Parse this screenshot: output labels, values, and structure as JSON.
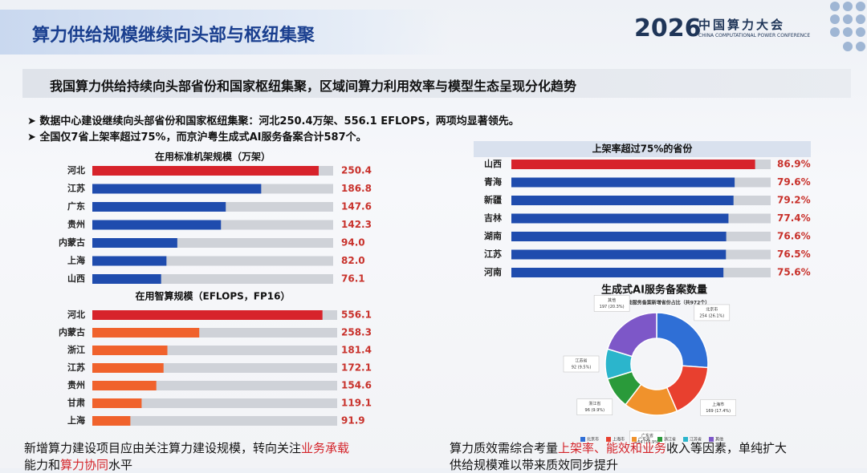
{
  "header": {
    "title": "算力供给规模继续向头部与枢纽集聚",
    "logo_year": "2026",
    "logo_name": "中国算力大会",
    "logo_english": "CHINA COMPUTATIONAL POWER CONFERENCE"
  },
  "summary": {
    "text": "我国算力供给持续向头部省份和国家枢纽集聚，区域间算力利用效率与模型生态呈现",
    "highlight": "分化趋势"
  },
  "bullets": [
    "数据中心建设继续向头部省份和国家枢纽集聚：河北250.4万架、556.1 EFLOPS，两项均显著领先。",
    "全国仅7省上架率超过75%，而京沪粤生成式AI服务备案合计587个。"
  ],
  "chart_data": [
    {
      "type": "bar",
      "title": "在用标准机架规模（万架）",
      "categories": [
        "河北",
        "江苏",
        "广东",
        "贵州",
        "内蒙古",
        "上海",
        "山西"
      ],
      "values": [
        250.4,
        186.8,
        147.6,
        142.3,
        94.0,
        82.0,
        76.1
      ],
      "value_labels": [
        "250.4",
        "186.8",
        "147.6",
        "142.3",
        "94.0",
        "82.0",
        "76.1"
      ],
      "colors": [
        "#d7232b",
        "#1f4cae",
        "#1f4cae",
        "#1f4cae",
        "#1f4cae",
        "#1f4cae",
        "#1f4cae"
      ]
    },
    {
      "type": "bar",
      "title": "在用智算规模（EFLOPS，FP16）",
      "categories": [
        "河北",
        "内蒙古",
        "浙江",
        "江苏",
        "贵州",
        "甘肃",
        "上海"
      ],
      "values": [
        556.1,
        258.3,
        181.4,
        172.1,
        154.6,
        119.1,
        91.9
      ],
      "value_labels": [
        "556.1",
        "258.3",
        "181.4",
        "172.1",
        "154.6",
        "119.1",
        "91.9"
      ],
      "colors": [
        "#d7232b",
        "#f0622c",
        "#f0622c",
        "#f0622c",
        "#f0622c",
        "#f0622c",
        "#f0622c"
      ]
    },
    {
      "type": "bar",
      "title": "上架率超过75%的省份",
      "categories": [
        "山西",
        "青海",
        "新疆",
        "吉林",
        "湖南",
        "江苏",
        "河南"
      ],
      "values": [
        86.9,
        79.6,
        79.2,
        77.4,
        76.6,
        76.5,
        75.6
      ],
      "value_labels": [
        "86.9%",
        "79.6%",
        "79.2%",
        "77.4%",
        "76.6%",
        "76.5%",
        "75.6%"
      ],
      "colors": [
        "#d7232b",
        "#1f4cae",
        "#1f4cae",
        "#1f4cae",
        "#1f4cae",
        "#1f4cae",
        "#1f4cae"
      ]
    },
    {
      "type": "pie",
      "title": "生成式AI服务备案数量",
      "subtitle": "生成式人工智能服务备案新增省份占比（共972个）",
      "categories": [
        "北京市",
        "上海市",
        "广东省",
        "浙江省",
        "江苏省",
        "其他"
      ],
      "values": [
        254,
        169,
        164,
        96,
        92,
        197
      ],
      "value_labels": [
        "254 (26.1%)",
        "169 (17.4%)",
        "164 (16.9%)",
        "96 (9.9%)",
        "92 (9.5%)",
        "197 (20.3%)"
      ],
      "colors": [
        "#2f6fd6",
        "#e8402f",
        "#f0922c",
        "#2a9a3a",
        "#2bb5cc",
        "#7d57c8"
      ]
    }
  ],
  "footer": {
    "left": [
      "新增算力建设项目应由关注算力建设规模，转向关注",
      "业务承载",
      "能力和",
      "算力协同",
      "水平"
    ],
    "right": [
      "算力质效需综合考量",
      "上架率、能效和业务",
      "收入等因素，单纯扩大",
      "供给规模难以带来质效同步提升"
    ]
  }
}
